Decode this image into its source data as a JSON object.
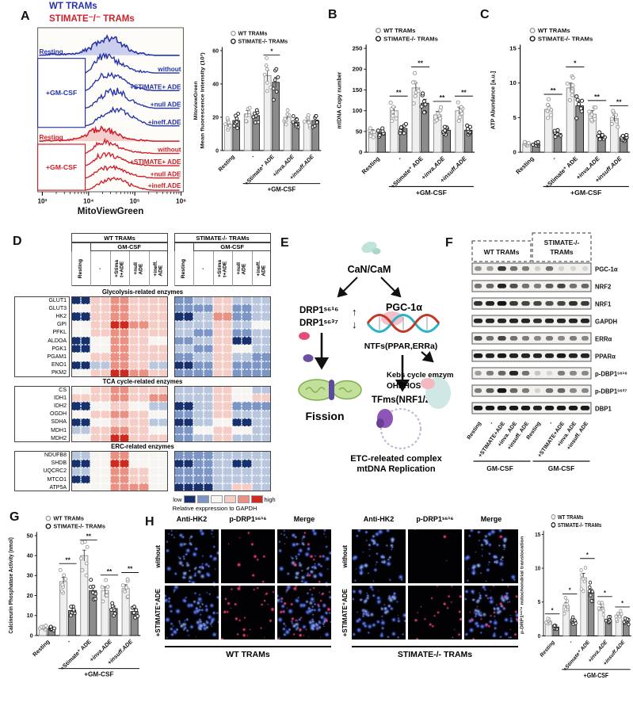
{
  "header": {
    "wt": "WT TRAMs",
    "ko": "STIMATE⁻/⁻ TRAMs"
  },
  "panel_letters": {
    "a": "A",
    "b": "B",
    "c": "C",
    "d": "D",
    "e": "E",
    "f": "F",
    "g": "G",
    "h": "H"
  },
  "legend": {
    "wt": "WT TRAMs",
    "ko": "STIMATE-/- TRAMs"
  },
  "gmcsf": "+GM-CSF",
  "colors": {
    "wt_blue": "#2533a8",
    "ko_red": "#cf1f2a",
    "bar_wt": "#efefef",
    "bar_ko": "#8c8c8c"
  },
  "categories": [
    {
      "label": "Resting",
      "em": false
    },
    {
      "label": "-",
      "em": false
    },
    {
      "label": "+Stimate⁺ ADE",
      "em": false
    },
    {
      "label": "+inva.ADE",
      "em": true
    },
    {
      "label": "+insuff.ADE",
      "em": true
    }
  ],
  "flow": {
    "xlabel": "MitoViewGreen",
    "xticks": [
      "10³",
      "10⁴",
      "10⁵",
      "10⁶"
    ],
    "groups": [
      {
        "color": "#2533a8",
        "fill": "rgba(90,100,210,0.30)",
        "resting": "Resting",
        "box": "+GM-CSF",
        "curves": [
          "without",
          "+STIMATE+ ADE",
          "+null ADE",
          "+ineff.ADE"
        ]
      },
      {
        "color": "#cf1f2a",
        "fill": "rgba(225,90,90,0.28)",
        "resting": "Resting",
        "box": "+GM-CSF",
        "curves": [
          "without",
          "+STIMATE+ ADE",
          "+null ADE",
          "+ineff.ADE"
        ]
      }
    ]
  },
  "chart_data": {
    "a": {
      "type": "bar",
      "ylabel": [
        "MitoviewGreen",
        "Mean fluorescence intensity (10³)"
      ],
      "ylim": [
        0,
        60
      ],
      "yticks": [
        0,
        20,
        40,
        60
      ],
      "wt": [
        16,
        22,
        45,
        20,
        18
      ],
      "ko": [
        18,
        21,
        41,
        17,
        18
      ],
      "sig": [
        "",
        "",
        "*",
        "",
        ""
      ]
    },
    "b": {
      "type": "bar",
      "ylabel": [
        "mtDNA Copy number"
      ],
      "ylim": [
        0,
        250
      ],
      "yticks": [
        0,
        50,
        100,
        150,
        200,
        250
      ],
      "wt": [
        48,
        100,
        155,
        90,
        100
      ],
      "ko": [
        48,
        57,
        118,
        53,
        53
      ],
      "sig": [
        "",
        "**",
        "**",
        "**",
        "**"
      ]
    },
    "c": {
      "type": "bar",
      "ylabel": [
        "ATP Abundance [a.u.]"
      ],
      "ylim": [
        0,
        15
      ],
      "yticks": [
        0,
        5,
        10,
        15
      ],
      "wt": [
        1.2,
        6.2,
        9.3,
        5.5,
        4.9
      ],
      "ko": [
        1.2,
        2.7,
        6.7,
        2.3,
        2.1
      ],
      "sig": [
        "",
        "**",
        "*",
        "**",
        "**"
      ]
    },
    "g": {
      "type": "bar",
      "ylabel": [
        "Calcineurin Phosphatase Activity (nmol)"
      ],
      "ylim": [
        0,
        50
      ],
      "yticks": [
        0,
        10,
        20,
        30,
        40,
        50
      ],
      "wt": [
        4,
        27,
        40,
        22.5,
        23.5
      ],
      "ko": [
        3.5,
        12.5,
        22.5,
        13.5,
        12
      ],
      "sig": [
        "",
        "**",
        "**",
        "**",
        "**"
      ]
    },
    "h": {
      "type": "bar",
      "ylabel": [
        "p-DRP1ˢ⁶¹⁶ mitochondrial translocation"
      ],
      "ylim": [
        0,
        15
      ],
      "yticks": [
        0,
        5,
        10,
        15
      ],
      "wt": [
        2.2,
        4.5,
        8.6,
        4.2,
        3.0
      ],
      "ko": [
        1.3,
        2.2,
        6.4,
        2.4,
        2.2
      ],
      "sig": [
        "*",
        "*",
        "*",
        "*",
        "*"
      ]
    }
  },
  "heatmap": {
    "group_headers": [
      "WT TRAMs",
      "STIMATE-/- TRAMs"
    ],
    "sub_header": "GM-CSF",
    "col_labels": [
      "Resting",
      "-",
      "+Stima\nt+ADE",
      "+null\nADE",
      "+ineff.\nADE"
    ],
    "palette": [
      "#16316e",
      "#7b96c4",
      "#b9c7de",
      "#f7f5f2",
      "#f4cdc6",
      "#ea9183",
      "#cf2a1e"
    ],
    "sections": [
      {
        "title": "Glycolysis-related enzymes",
        "rows": [
          {
            "name": "GLUT1",
            "wt": [
              -3,
              1,
              2,
              1,
              1
            ],
            "ko": [
              -2,
              -1,
              1,
              -1,
              -1
            ]
          },
          {
            "name": "GLUT3",
            "wt": [
              0,
              1,
              2,
              1,
              1
            ],
            "ko": [
              -2,
              -2,
              1,
              -2,
              -1
            ]
          },
          {
            "name": "HK2",
            "wt": [
              -3,
              1,
              2,
              1,
              1
            ],
            "ko": [
              -3,
              -1,
              2,
              -2,
              -1
            ]
          },
          {
            "name": "GPI",
            "wt": [
              0,
              1,
              3,
              2,
              1
            ],
            "ko": [
              -1,
              -1,
              1,
              -1,
              0
            ]
          },
          {
            "name": "PFKL",
            "wt": [
              0,
              1,
              2,
              1,
              1
            ],
            "ko": [
              -1,
              -2,
              1,
              -2,
              -1
            ]
          },
          {
            "name": "ALDOA",
            "wt": [
              -3,
              0,
              2,
              1,
              0
            ],
            "ko": [
              -2,
              -1,
              1,
              -3,
              -1
            ]
          },
          {
            "name": "PGK1",
            "wt": [
              -3,
              0,
              2,
              1,
              1
            ],
            "ko": [
              -1,
              -2,
              1,
              0,
              -1
            ]
          },
          {
            "name": "PGAM1",
            "wt": [
              0,
              1,
              2,
              1,
              1
            ],
            "ko": [
              -2,
              -1,
              1,
              -1,
              -2
            ]
          },
          {
            "name": "ENO1",
            "wt": [
              -3,
              -1,
              2,
              1,
              -1
            ],
            "ko": [
              -3,
              -2,
              1,
              -2,
              -2
            ]
          },
          {
            "name": "PKM2",
            "wt": [
              0,
              1,
              3,
              2,
              1
            ],
            "ko": [
              -2,
              -2,
              1,
              -2,
              -2
            ]
          }
        ]
      },
      {
        "title": "TCA cycle-related enzymes",
        "rows": [
          {
            "name": "CS",
            "wt": [
              0,
              1,
              2,
              1,
              1
            ],
            "ko": [
              -1,
              -1,
              1,
              0,
              -1
            ]
          },
          {
            "name": "IDH1",
            "wt": [
              1,
              1,
              2,
              1,
              2
            ],
            "ko": [
              -1,
              -1,
              1,
              0,
              1
            ]
          },
          {
            "name": "IDH2",
            "wt": [
              -3,
              0,
              1,
              0,
              -1
            ],
            "ko": [
              -3,
              -1,
              1,
              -2,
              -2
            ]
          },
          {
            "name": "OGDH",
            "wt": [
              0,
              1,
              2,
              1,
              0
            ],
            "ko": [
              -2,
              -1,
              1,
              -1,
              -1
            ]
          },
          {
            "name": "SDHA",
            "wt": [
              -3,
              0,
              1,
              1,
              -1
            ],
            "ko": [
              -3,
              -1,
              0,
              -3,
              -1
            ]
          },
          {
            "name": "MDH1",
            "wt": [
              -1,
              1,
              2,
              1,
              0
            ],
            "ko": [
              -2,
              0,
              1,
              0,
              -1
            ]
          },
          {
            "name": "MDH2",
            "wt": [
              0,
              1,
              3,
              1,
              1
            ],
            "ko": [
              -2,
              -1,
              1,
              -1,
              -1
            ]
          }
        ]
      },
      {
        "title": "ERC-related enzymes",
        "rows": [
          {
            "name": "NDUFB8",
            "wt": [
              -1,
              0,
              2,
              0,
              0
            ],
            "ko": [
              -2,
              -2,
              -1,
              -1,
              -1
            ]
          },
          {
            "name": "SHDB",
            "wt": [
              -3,
              0,
              3,
              0,
              0
            ],
            "ko": [
              -3,
              -2,
              -1,
              -3,
              -1
            ]
          },
          {
            "name": "UQCRC2",
            "wt": [
              -1,
              0,
              2,
              1,
              0
            ],
            "ko": [
              -2,
              -2,
              -1,
              -1,
              -1
            ]
          },
          {
            "name": "MTCO1",
            "wt": [
              -3,
              0,
              2,
              1,
              0
            ],
            "ko": [
              -2,
              -2,
              -1,
              -1,
              -1
            ]
          },
          {
            "name": "ATP5A",
            "wt": [
              0,
              0,
              2,
              2,
              0
            ],
            "ko": [
              -3,
              -3,
              -1,
              1,
              -1
            ]
          }
        ]
      }
    ],
    "legend": {
      "low": "low",
      "high": "high",
      "caption": "Relative exppression to GAPDH"
    }
  },
  "diagram": {
    "cancam": "CaN/CaM",
    "drp1a": "DRP1ˢ⁶¹⁶",
    "drp1b": "DRP1ˢ⁶³⁷",
    "up": "↑",
    "down": "↓",
    "pgc": "PGC-1α",
    "ntfs": "NTFs(PPAR,ERRa)",
    "fission": "Fission",
    "tfms": "TFms(NRF1/2)",
    "kebs": "Kebs cycle emzymes",
    "ohphos": "OHPHOS",
    "etc1": "ETC-releated complex",
    "etc2": "mtDNA Replication"
  },
  "blots": {
    "group_headers": [
      "WT TRAMs",
      "STIMATE-/-",
      "TRAMs"
    ],
    "lanes": [
      "Resting",
      "-",
      "+STIMATE+ADE",
      "+inva. ADE",
      "+insuff. ADE",
      "Resting",
      "-",
      "+STIMATE+ADE",
      "+inva. ADE",
      "+insuff. ADE"
    ],
    "bracket": "GM-CSF",
    "rows": [
      {
        "label": "PGC-1α",
        "bands": [
          0.35,
          0.3,
          0.75,
          0.5,
          0.45,
          0.08,
          0.5,
          0.06,
          0.05,
          0.05
        ]
      },
      {
        "label": "NRF2",
        "bands": [
          0.5,
          0.55,
          0.85,
          0.65,
          0.5,
          0.45,
          0.6,
          0.7,
          0.5,
          0.55
        ]
      },
      {
        "label": "NRF1",
        "bands": [
          0.8,
          0.85,
          0.95,
          0.75,
          0.7,
          0.7,
          0.65,
          0.7,
          0.8,
          0.75
        ]
      },
      {
        "label": "GAPDH",
        "bands": [
          0.85,
          0.85,
          0.85,
          0.85,
          0.85,
          0.8,
          0.85,
          0.85,
          0.85,
          0.85
        ]
      },
      {
        "label": "ERRα",
        "bands": [
          0.65,
          0.5,
          0.7,
          0.5,
          0.45,
          0.4,
          0.45,
          0.4,
          0.45,
          0.4
        ]
      },
      {
        "label": "PPARα",
        "bands": [
          0.9,
          0.85,
          0.9,
          0.85,
          0.85,
          0.85,
          0.85,
          0.9,
          0.85,
          0.85
        ]
      },
      {
        "label": "p-DBP1ˢ⁶¹⁶",
        "bands": [
          0.3,
          0.45,
          0.55,
          0.85,
          0.5,
          0.12,
          0.05,
          0.45,
          0.4,
          0.4
        ]
      },
      {
        "label": "p-DBP1ˢ⁶³⁷",
        "bands": [
          0.45,
          0.6,
          0.95,
          0.55,
          0.45,
          0.06,
          0.5,
          0.55,
          0.4,
          0.4
        ]
      },
      {
        "label": "DBP1",
        "bands": [
          0.9,
          0.9,
          0.9,
          0.9,
          0.9,
          0.85,
          0.9,
          0.9,
          0.9,
          0.9
        ]
      }
    ]
  },
  "if_panel": {
    "col_headers": [
      "Anti-HK2",
      "p-DRP1ˢ⁶¹⁶",
      "Merge"
    ],
    "row_labels": [
      "without",
      "+STIMATE⁺ADE"
    ],
    "group_labels": [
      "WT TRAMs",
      "STIMATE-/- TRAMs"
    ],
    "density": [
      {
        "rows": [
          {
            "blue": 42,
            "red": 10
          },
          {
            "blue": 62,
            "red": 30
          }
        ]
      },
      {
        "rows": [
          {
            "blue": 32,
            "red": 3
          },
          {
            "blue": 48,
            "red": 22
          }
        ]
      }
    ]
  }
}
